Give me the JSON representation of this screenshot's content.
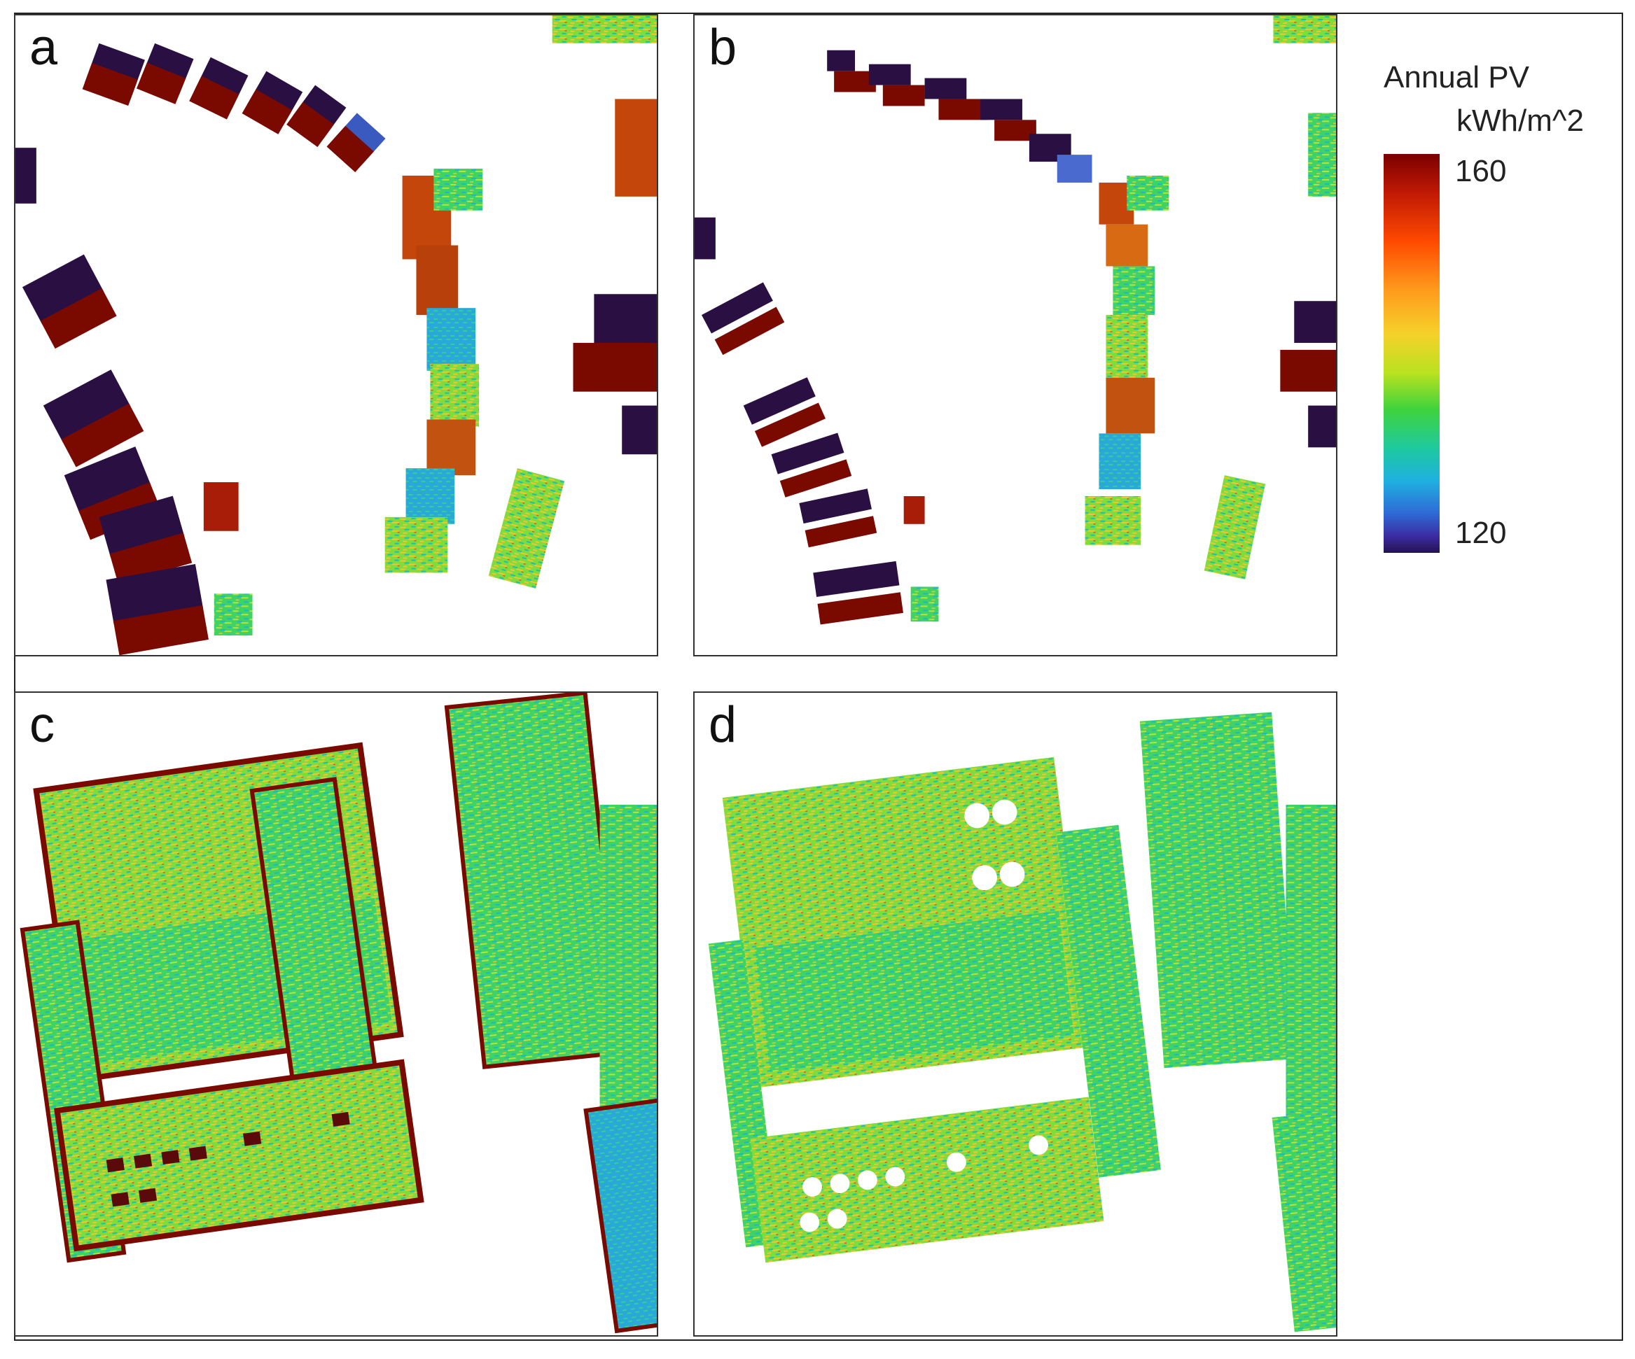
{
  "panels": [
    {
      "label": "a"
    },
    {
      "label": "b"
    },
    {
      "label": "c"
    },
    {
      "label": "d"
    }
  ],
  "legend": {
    "title": "Annual PV",
    "unit": "kWh/m^2",
    "max_label": "160",
    "min_label": "120",
    "colors": [
      "#7a0000",
      "#ff4a00",
      "#f6d12a",
      "#3fd33c",
      "#1fb0e0",
      "#25134f"
    ]
  }
}
